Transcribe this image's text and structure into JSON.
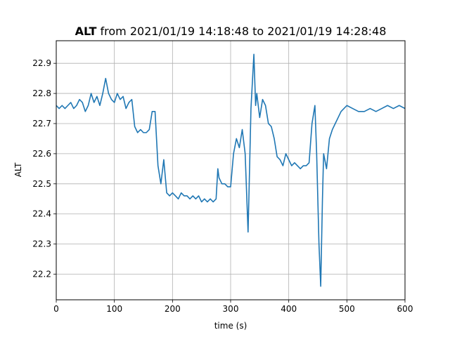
{
  "chart_data": {
    "type": "line",
    "title_bold": "ALT",
    "title_rest": " from 2021/01/19 14:18:48 to 2021/01/19 14:28:48",
    "xlabel": "time (s)",
    "ylabel": "ALT",
    "xlim": [
      0,
      600
    ],
    "ylim": [
      22.115,
      22.975
    ],
    "xticks": [
      0,
      100,
      200,
      300,
      400,
      500,
      600
    ],
    "yticks": [
      22.2,
      22.3,
      22.4,
      22.5,
      22.6,
      22.7,
      22.8,
      22.9
    ],
    "ytick_labels": [
      "22.2",
      "22.3",
      "22.4",
      "22.5",
      "22.6",
      "22.7",
      "22.8",
      "22.9"
    ],
    "grid": true,
    "line_color": "#1f77b4",
    "series": [
      {
        "x": [
          0,
          5,
          10,
          15,
          20,
          25,
          30,
          35,
          40,
          45,
          50,
          55,
          60,
          65,
          70,
          75,
          80,
          85,
          90,
          95,
          100,
          105,
          110,
          115,
          120,
          125,
          130,
          135,
          140,
          145,
          150,
          155,
          160,
          165,
          170,
          175,
          180,
          185,
          190,
          195,
          200,
          205,
          210,
          215,
          220,
          225,
          230,
          235,
          240,
          245,
          250,
          255,
          260,
          265,
          270,
          275,
          278,
          280,
          285,
          290,
          295,
          300,
          305,
          310,
          315,
          320,
          325,
          330,
          332,
          335,
          340,
          343,
          345,
          350,
          355,
          360,
          365,
          370,
          375,
          380,
          385,
          390,
          395,
          400,
          405,
          410,
          415,
          420,
          425,
          430,
          435,
          440,
          445,
          448,
          452,
          455,
          458,
          460,
          465,
          470,
          475,
          480,
          485,
          490,
          495,
          500,
          510,
          520,
          530,
          540,
          550,
          560,
          570,
          580,
          590,
          600
        ],
        "y": [
          22.76,
          22.75,
          22.76,
          22.75,
          22.76,
          22.77,
          22.75,
          22.76,
          22.78,
          22.77,
          22.74,
          22.76,
          22.8,
          22.77,
          22.79,
          22.76,
          22.8,
          22.85,
          22.8,
          22.78,
          22.77,
          22.8,
          22.78,
          22.79,
          22.75,
          22.77,
          22.78,
          22.69,
          22.67,
          22.68,
          22.67,
          22.67,
          22.68,
          22.74,
          22.74,
          22.56,
          22.5,
          22.58,
          22.47,
          22.46,
          22.47,
          22.46,
          22.45,
          22.47,
          22.46,
          22.46,
          22.45,
          22.46,
          22.45,
          22.46,
          22.44,
          22.45,
          22.44,
          22.45,
          22.44,
          22.45,
          22.55,
          22.52,
          22.5,
          22.5,
          22.49,
          22.49,
          22.6,
          22.65,
          22.62,
          22.68,
          22.6,
          22.34,
          22.5,
          22.75,
          22.93,
          22.76,
          22.8,
          22.72,
          22.78,
          22.76,
          22.7,
          22.69,
          22.65,
          22.59,
          22.58,
          22.56,
          22.6,
          22.58,
          22.56,
          22.57,
          22.56,
          22.55,
          22.56,
          22.56,
          22.57,
          22.7,
          22.76,
          22.6,
          22.3,
          22.16,
          22.45,
          22.6,
          22.55,
          22.65,
          22.68,
          22.7,
          22.72,
          22.74,
          22.75,
          22.76,
          22.75,
          22.74,
          22.74,
          22.75,
          22.74,
          22.75,
          22.76,
          22.75,
          22.76,
          22.75
        ]
      }
    ]
  }
}
